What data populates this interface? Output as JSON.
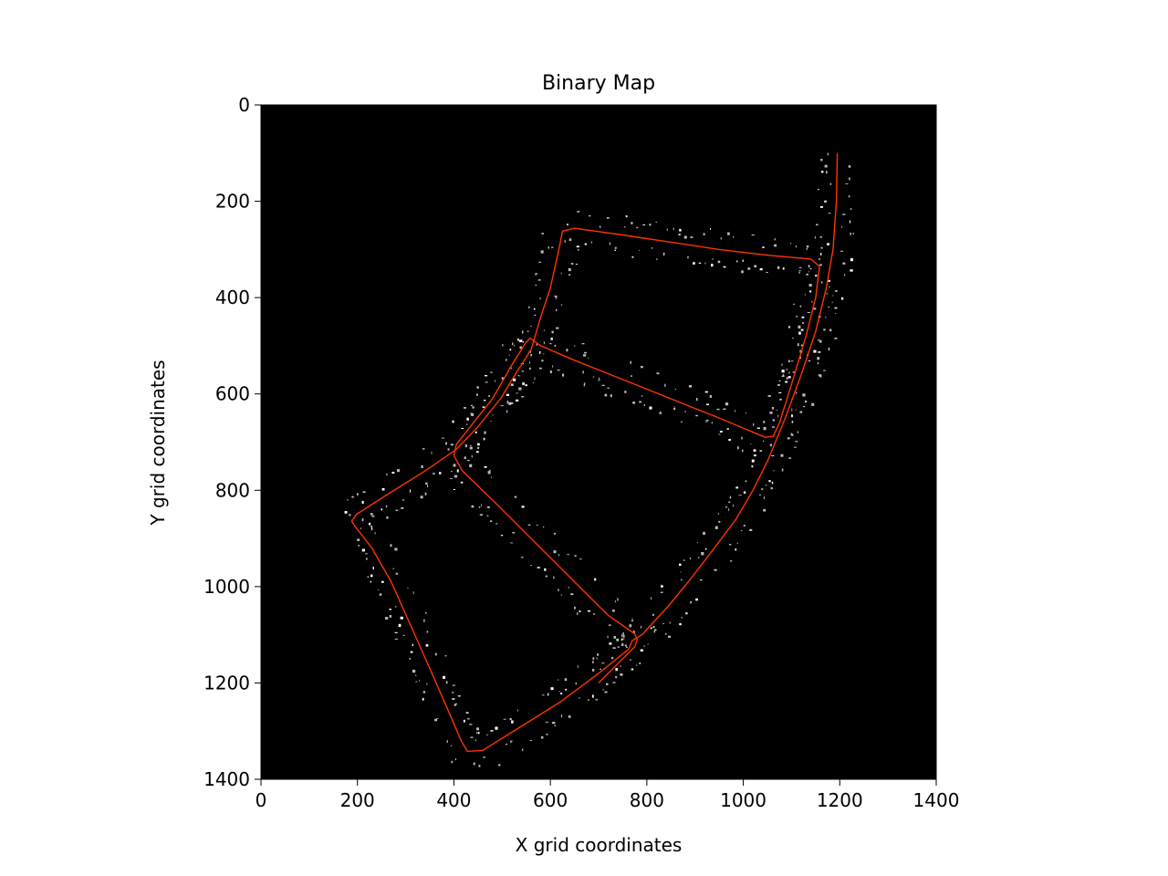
{
  "chart_data": {
    "type": "line",
    "title": "Binary Map",
    "xlabel": "X grid coordinates",
    "ylabel": "Y grid coordinates",
    "xlim": [
      0,
      1400
    ],
    "ylim": [
      1400,
      0
    ],
    "y_inverted": true,
    "xticks": [
      0,
      200,
      400,
      600,
      800,
      1000,
      1200,
      1400
    ],
    "yticks": [
      0,
      200,
      400,
      600,
      800,
      1000,
      1200,
      1400
    ],
    "background_color": "#000000",
    "grid": false,
    "legend": "none",
    "series": [
      {
        "color": "#ff3300",
        "points": [
          [
            1195,
            100
          ],
          [
            1193,
            200
          ],
          [
            1186,
            300
          ],
          [
            1172,
            380
          ],
          [
            1150,
            470
          ],
          [
            1120,
            560
          ],
          [
            1087,
            650
          ],
          [
            1050,
            740
          ],
          [
            1020,
            800
          ],
          [
            985,
            860
          ],
          [
            940,
            920
          ],
          [
            890,
            985
          ],
          [
            845,
            1040
          ],
          [
            790,
            1100
          ],
          [
            770,
            1112
          ],
          [
            762,
            1130
          ],
          [
            700,
            1180
          ],
          [
            620,
            1240
          ],
          [
            540,
            1290
          ],
          [
            460,
            1340
          ],
          [
            428,
            1342
          ],
          [
            415,
            1320
          ],
          [
            385,
            1250
          ],
          [
            350,
            1170
          ],
          [
            310,
            1080
          ],
          [
            270,
            990
          ],
          [
            230,
            920
          ],
          [
            195,
            875
          ],
          [
            188,
            864
          ],
          [
            198,
            850
          ],
          [
            260,
            810
          ],
          [
            340,
            760
          ],
          [
            405,
            715
          ],
          [
            450,
            668
          ],
          [
            498,
            608
          ],
          [
            530,
            555
          ],
          [
            560,
            508
          ],
          [
            580,
            440
          ],
          [
            600,
            380
          ],
          [
            618,
            298
          ],
          [
            625,
            262
          ],
          [
            650,
            256
          ],
          [
            750,
            270
          ],
          [
            850,
            285
          ],
          [
            950,
            300
          ],
          [
            1050,
            312
          ],
          [
            1140,
            320
          ],
          [
            1158,
            335
          ],
          [
            1150,
            400
          ],
          [
            1130,
            480
          ],
          [
            1100,
            580
          ],
          [
            1075,
            660
          ],
          [
            1062,
            688
          ],
          [
            1045,
            690
          ],
          [
            950,
            650
          ],
          [
            850,
            610
          ],
          [
            750,
            570
          ],
          [
            650,
            530
          ],
          [
            580,
            500
          ],
          [
            558,
            484
          ],
          [
            548,
            495
          ],
          [
            520,
            540
          ],
          [
            480,
            610
          ],
          [
            440,
            660
          ],
          [
            405,
            705
          ],
          [
            400,
            728
          ],
          [
            418,
            760
          ],
          [
            490,
            830
          ],
          [
            560,
            900
          ],
          [
            640,
            980
          ],
          [
            720,
            1060
          ],
          [
            775,
            1098
          ],
          [
            780,
            1110
          ],
          [
            775,
            1125
          ],
          [
            740,
            1160
          ],
          [
            700,
            1200
          ]
        ]
      }
    ]
  }
}
